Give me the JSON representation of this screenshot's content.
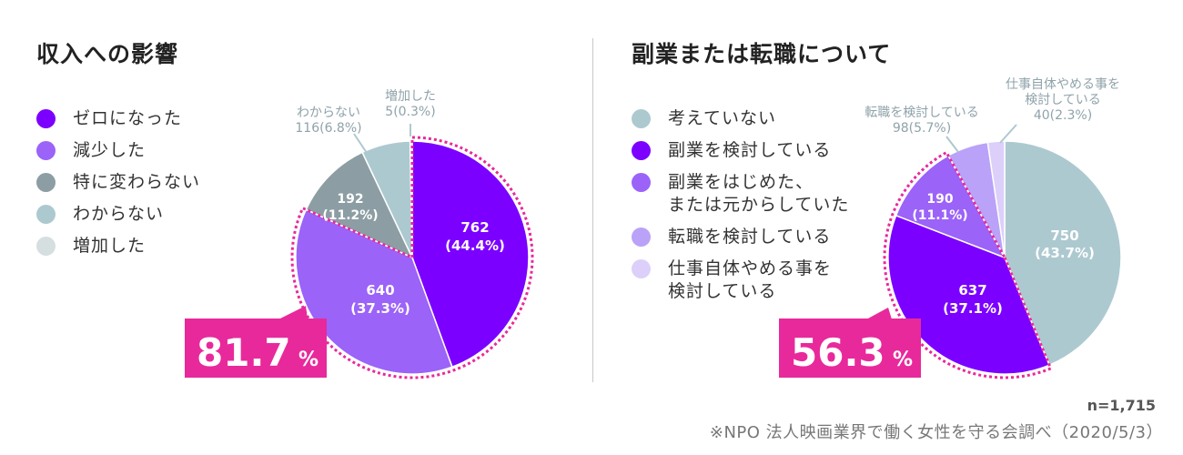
{
  "chart_data": [
    {
      "type": "pie",
      "title": "収入への影響",
      "slices": [
        {
          "label": "ゼロになった",
          "value": 762,
          "percent": "44.4%",
          "color": "#7b00ff"
        },
        {
          "label": "減少した",
          "value": 640,
          "percent": "37.3%",
          "color": "#9b63f8"
        },
        {
          "label": "特に変わらない",
          "value": 192,
          "percent": "11.2%",
          "color": "#8c9ea3"
        },
        {
          "label": "わからない",
          "value": 116,
          "percent": "6.8%",
          "color": "#adc9d0"
        },
        {
          "label": "増加した",
          "value": 5,
          "percent": "0.3%",
          "color": "#d5dfe0"
        }
      ],
      "legend": [
        "ゼロになった",
        "減少した",
        "特に変わらない",
        "わからない",
        "増加した"
      ],
      "data_labels": [
        {
          "line1": "762",
          "line2": "(44.4%)"
        },
        {
          "line1": "640",
          "line2": "(37.3%)"
        },
        {
          "line1": "192",
          "line2": "(11.2%)"
        }
      ],
      "callouts": [
        {
          "line1": "わからない",
          "line2": "116(6.8%)"
        },
        {
          "line1": "増加した",
          "line2": "5(0.3%)"
        }
      ],
      "highlight": {
        "number": "81.7",
        "unit": "%"
      }
    },
    {
      "type": "pie",
      "title": "副業または転職について",
      "slices": [
        {
          "label": "考えていない",
          "value": 750,
          "percent": "43.7%",
          "color": "#adc9d0"
        },
        {
          "label": "副業を検討している",
          "value": 637,
          "percent": "37.1%",
          "color": "#7b00ff"
        },
        {
          "label": "副業をはじめた、\nまたは元からしていた",
          "value": 190,
          "percent": "11.1%",
          "color": "#9b63f8"
        },
        {
          "label": "転職を検討している",
          "value": 98,
          "percent": "5.7%",
          "color": "#b9a2f8"
        },
        {
          "label": "仕事自体やめる事を\n検討している",
          "value": 40,
          "percent": "2.3%",
          "color": "#dcd0fa"
        }
      ],
      "legend": [
        "考えていない",
        "副業を検討している",
        "副業をはじめた、\nまたは元からしていた",
        "転職を検討している",
        "仕事自体やめる事を\n検討している"
      ],
      "data_labels": [
        {
          "line1": "750",
          "line2": "(43.7%)"
        },
        {
          "line1": "637",
          "line2": "(37.1%)"
        },
        {
          "line1": "190",
          "line2": "(11.1%)"
        }
      ],
      "callouts": [
        {
          "line1": "転職を検討している",
          "line2": "98(5.7%)"
        },
        {
          "line1": "仕事自体やめる事を",
          "line2": "検討している",
          "line3": "40(2.3%)"
        }
      ],
      "highlight": {
        "number": "56.3",
        "unit": "%"
      }
    }
  ],
  "footer": {
    "sample": "n=1,715",
    "source": "※NPO 法人映画業界で働く女性を守る会調べ（2020/5/3）"
  }
}
